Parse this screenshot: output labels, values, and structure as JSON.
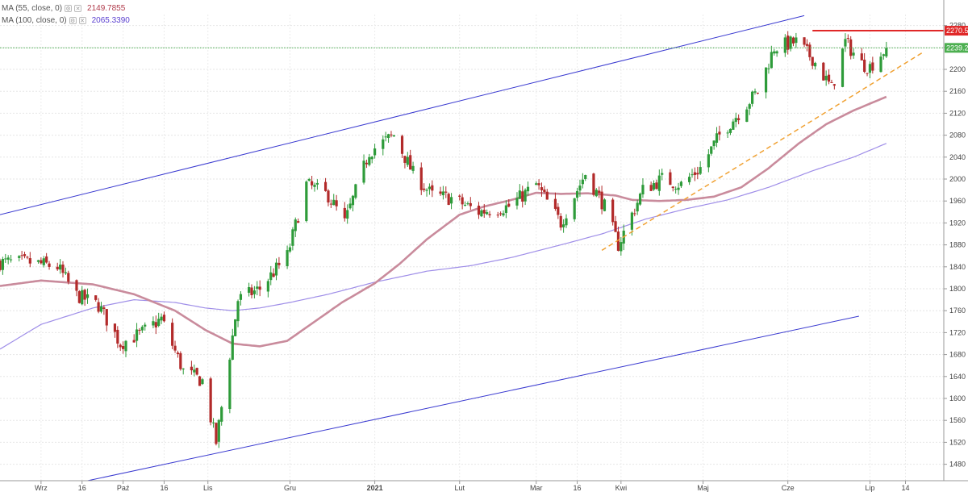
{
  "legend": [
    {
      "label": "MA (55, close, 0)",
      "value": "2149.7855",
      "color": "#b03a4a"
    },
    {
      "label": "MA (100, close, 0)",
      "value": "2065.3390",
      "color": "#5a3fd0"
    }
  ],
  "colors": {
    "up": "#2e9b3a",
    "down": "#b22a2a",
    "ma55": "#c98b9c",
    "ma100": "#9f8ee8",
    "channel": "#3a3ad0",
    "trend": "#f0a030",
    "resistance": "#e02828",
    "current": "#4caf50"
  },
  "chart_data": {
    "type": "candlestick",
    "ylim": [
      1450,
      2300
    ],
    "y_ticks": [
      1480,
      1520,
      1560,
      1600,
      1640,
      1680,
      1720,
      1760,
      1800,
      1840,
      1880,
      1920,
      1960,
      2000,
      2040,
      2080,
      2120,
      2160,
      2200,
      2240,
      2280
    ],
    "x_range": [
      "2020-08-17",
      "2021-07-28"
    ],
    "x_ticks": [
      {
        "label": "Wrz",
        "date": "2020-09-01",
        "bold": false
      },
      {
        "label": "16",
        "date": "2020-09-16",
        "bold": false
      },
      {
        "label": "Paź",
        "date": "2020-10-01",
        "bold": false
      },
      {
        "label": "16",
        "date": "2020-10-16",
        "bold": false
      },
      {
        "label": "Lis",
        "date": "2020-11-01",
        "bold": false
      },
      {
        "label": "Gru",
        "date": "2020-12-01",
        "bold": false
      },
      {
        "label": "2021",
        "date": "2021-01-01",
        "bold": true
      },
      {
        "label": "Lut",
        "date": "2021-02-01",
        "bold": false
      },
      {
        "label": "Mar",
        "date": "2021-03-01",
        "bold": false
      },
      {
        "label": "16",
        "date": "2021-03-16",
        "bold": false
      },
      {
        "label": "Kwi",
        "date": "2021-04-01",
        "bold": false
      },
      {
        "label": "Maj",
        "date": "2021-05-01",
        "bold": false
      },
      {
        "label": "Cze",
        "date": "2021-06-01",
        "bold": false
      },
      {
        "label": "Lip",
        "date": "2021-07-01",
        "bold": false
      },
      {
        "label": "14",
        "date": "2021-07-14",
        "bold": false
      }
    ],
    "close_anchors": [
      [
        "2020-08-17",
        1848
      ],
      [
        "2020-08-28",
        1848
      ],
      [
        "2020-09-07",
        1840
      ],
      [
        "2020-09-14",
        1788
      ],
      [
        "2020-09-22",
        1770
      ],
      [
        "2020-09-30",
        1700
      ],
      [
        "2020-10-08",
        1720
      ],
      [
        "2020-10-15",
        1745
      ],
      [
        "2020-10-23",
        1650
      ],
      [
        "2020-10-30",
        1632
      ],
      [
        "2020-11-04",
        1520
      ],
      [
        "2020-11-09",
        1680
      ],
      [
        "2020-11-12",
        1780
      ],
      [
        "2020-11-20",
        1800
      ],
      [
        "2020-11-30",
        1860
      ],
      [
        "2020-12-07",
        1990
      ],
      [
        "2020-12-15",
        1970
      ],
      [
        "2020-12-21",
        1920
      ],
      [
        "2020-12-30",
        2050
      ],
      [
        "2021-01-08",
        2080
      ],
      [
        "2021-01-15",
        2010
      ],
      [
        "2021-01-22",
        1970
      ],
      [
        "2021-01-29",
        1965
      ],
      [
        "2021-02-08",
        1940
      ],
      [
        "2021-02-19",
        1950
      ],
      [
        "2021-03-01",
        1990
      ],
      [
        "2021-03-10",
        1920
      ],
      [
        "2021-03-19",
        2010
      ],
      [
        "2021-03-26",
        1950
      ],
      [
        "2021-03-31",
        1880
      ],
      [
        "2021-04-09",
        1980
      ],
      [
        "2021-04-16",
        2000
      ],
      [
        "2021-04-23",
        1990
      ],
      [
        "2021-04-30",
        2020
      ],
      [
        "2021-05-07",
        2080
      ],
      [
        "2021-05-14",
        2120
      ],
      [
        "2021-05-21",
        2160
      ],
      [
        "2021-05-27",
        2240
      ],
      [
        "2021-06-04",
        2250
      ],
      [
        "2021-06-10",
        2220
      ],
      [
        "2021-06-17",
        2165
      ],
      [
        "2021-06-22",
        2250
      ],
      [
        "2021-06-28",
        2210
      ],
      [
        "2021-07-01",
        2205
      ],
      [
        "2021-07-07",
        2239
      ]
    ],
    "ma55_anchors": [
      [
        "2020-08-17",
        1805
      ],
      [
        "2020-09-01",
        1815
      ],
      [
        "2020-09-20",
        1808
      ],
      [
        "2020-10-05",
        1790
      ],
      [
        "2020-10-20",
        1760
      ],
      [
        "2020-10-31",
        1725
      ],
      [
        "2020-11-10",
        1700
      ],
      [
        "2020-11-20",
        1695
      ],
      [
        "2020-11-30",
        1705
      ],
      [
        "2020-12-10",
        1740
      ],
      [
        "2020-12-20",
        1775
      ],
      [
        "2021-01-01",
        1810
      ],
      [
        "2021-01-10",
        1845
      ],
      [
        "2021-01-20",
        1890
      ],
      [
        "2021-02-01",
        1935
      ],
      [
        "2021-02-10",
        1950
      ],
      [
        "2021-02-20",
        1962
      ],
      [
        "2021-03-01",
        1975
      ],
      [
        "2021-03-10",
        1973
      ],
      [
        "2021-03-20",
        1974
      ],
      [
        "2021-03-30",
        1970
      ],
      [
        "2021-04-05",
        1962
      ],
      [
        "2021-04-15",
        1960
      ],
      [
        "2021-04-25",
        1962
      ],
      [
        "2021-05-05",
        1968
      ],
      [
        "2021-05-15",
        1985
      ],
      [
        "2021-05-25",
        2020
      ],
      [
        "2021-06-05",
        2065
      ],
      [
        "2021-06-15",
        2100
      ],
      [
        "2021-06-25",
        2125
      ],
      [
        "2021-07-07",
        2150
      ]
    ],
    "ma100_anchors": [
      [
        "2020-08-17",
        1690
      ],
      [
        "2020-09-01",
        1735
      ],
      [
        "2020-09-20",
        1765
      ],
      [
        "2020-10-05",
        1780
      ],
      [
        "2020-10-20",
        1775
      ],
      [
        "2020-10-31",
        1765
      ],
      [
        "2020-11-10",
        1760
      ],
      [
        "2020-11-20",
        1765
      ],
      [
        "2020-12-01",
        1775
      ],
      [
        "2020-12-15",
        1790
      ],
      [
        "2021-01-01",
        1812
      ],
      [
        "2021-01-20",
        1832
      ],
      [
        "2021-02-05",
        1842
      ],
      [
        "2021-02-20",
        1857
      ],
      [
        "2021-03-10",
        1880
      ],
      [
        "2021-03-25",
        1900
      ],
      [
        "2021-04-10",
        1927
      ],
      [
        "2021-04-25",
        1946
      ],
      [
        "2021-05-10",
        1962
      ],
      [
        "2021-05-25",
        1985
      ],
      [
        "2021-06-10",
        2015
      ],
      [
        "2021-06-25",
        2040
      ],
      [
        "2021-07-07",
        2065
      ]
    ],
    "channel_upper": [
      [
        "2020-08-17",
        1935
      ],
      [
        "2021-06-07",
        2298
      ]
    ],
    "channel_lower": [
      [
        "2020-09-18",
        1450
      ],
      [
        "2021-06-27",
        1750
      ]
    ],
    "trendline": [
      [
        "2021-03-25",
        1870
      ],
      [
        "2021-07-20",
        2230
      ]
    ],
    "resistance": {
      "value": 2270.5,
      "from": "2021-06-10",
      "to": "2021-07-31",
      "label": "2270.5"
    },
    "last_price": {
      "value": 2239.2,
      "label": "2239.2"
    }
  }
}
